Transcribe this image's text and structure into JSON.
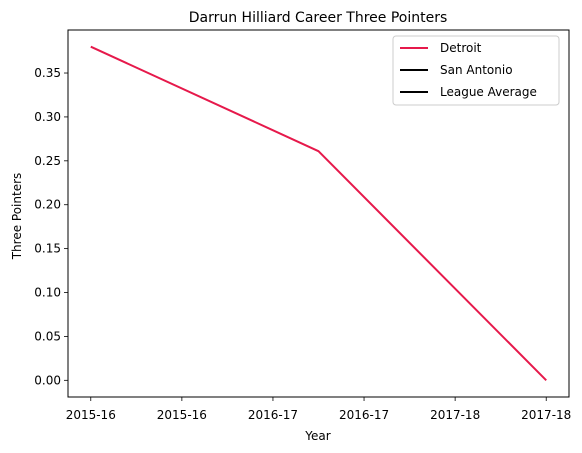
{
  "chart_data": {
    "type": "line",
    "title": "Darrun Hilliard Career Three Pointers",
    "xlabel": "Year",
    "ylabel": "Three Pointers",
    "x_tick_labels": [
      "2015-16",
      "2015-16",
      "2016-17",
      "2016-17",
      "2017-18",
      "2017-18"
    ],
    "x_range": [
      -0.1,
      2.1
    ],
    "ylim": [
      -0.019,
      0.399
    ],
    "y_ticks": [
      0.0,
      0.05,
      0.1,
      0.15,
      0.2,
      0.25,
      0.3,
      0.35
    ],
    "y_tick_labels": [
      "0.00",
      "0.05",
      "0.10",
      "0.15",
      "0.20",
      "0.25",
      "0.30",
      "0.35"
    ],
    "grid": false,
    "legend_position": "top-right",
    "series": [
      {
        "name": "Detroit",
        "color": "#e6194b",
        "points": [
          {
            "x": 0,
            "y": 0.38
          },
          {
            "x": 1,
            "y": 0.261
          },
          {
            "x": 2,
            "y": 0.0
          }
        ]
      },
      {
        "name": "San Antonio",
        "color": "#000000",
        "points": []
      },
      {
        "name": "League Average",
        "color": "#000000",
        "points": []
      }
    ]
  }
}
